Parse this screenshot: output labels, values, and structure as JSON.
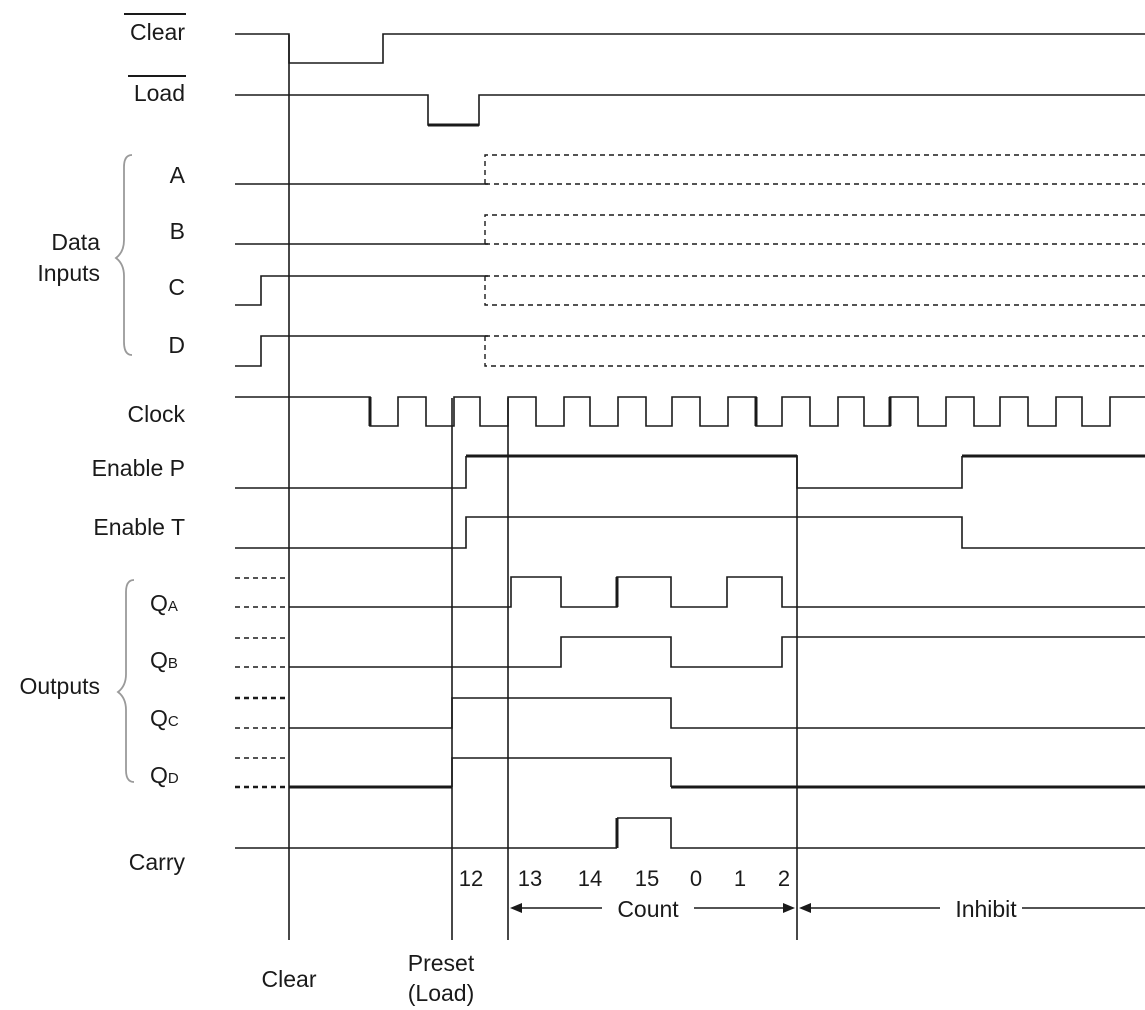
{
  "signals": {
    "clear_n": "Clear",
    "load_n": "Load",
    "a": "A",
    "b": "B",
    "c": "C",
    "d": "D",
    "clock": "Clock",
    "enable_p": "Enable  P",
    "enable_t": "Enable  T",
    "qa": {
      "main": "Q",
      "sub": "A"
    },
    "qb": {
      "main": "Q",
      "sub": "B"
    },
    "qc": {
      "main": "Q",
      "sub": "C"
    },
    "qd": {
      "main": "Q",
      "sub": "D"
    },
    "carry": "Carry"
  },
  "groups": {
    "data_inputs": [
      "Data",
      "Inputs"
    ],
    "outputs": "Outputs"
  },
  "counts": [
    "12",
    "13",
    "14",
    "15",
    "0",
    "1",
    "2"
  ],
  "sequence": {
    "count": "Count",
    "inhibit": "Inhibit"
  },
  "events": {
    "clear": "Clear",
    "preset": [
      "Preset",
      "(Load)"
    ]
  }
}
